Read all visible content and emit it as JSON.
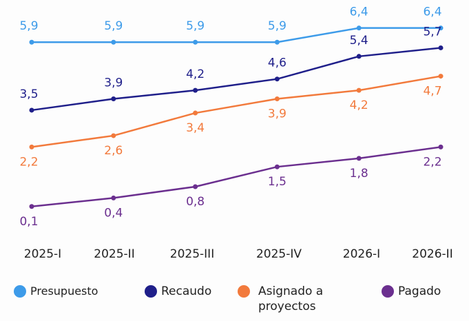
{
  "chart_data": {
    "type": "line",
    "categories": [
      "2025-I",
      "2025-II",
      "2025-III",
      "2025-IV",
      "2026-I",
      "2026-II"
    ],
    "ylim": [
      -1,
      7
    ],
    "legend": "bottom",
    "series": [
      {
        "name": "Presupuesto",
        "color": "#3d9be9",
        "values": [
          5.9,
          5.9,
          5.9,
          5.9,
          6.4,
          6.4
        ],
        "value_labels": [
          "5,9",
          "5,9",
          "5,9",
          "5,9",
          "6,4",
          "6,4"
        ]
      },
      {
        "name": "Recaudo",
        "color": "#1f1f8a",
        "values": [
          3.5,
          3.9,
          4.2,
          4.6,
          5.4,
          5.7
        ],
        "value_labels": [
          "3,5",
          "3,9",
          "4,2",
          "4,6",
          "5,4",
          "5,7"
        ]
      },
      {
        "name": "Asignado a proyectos",
        "color": "#f27a3c",
        "values": [
          2.2,
          2.6,
          3.4,
          3.9,
          4.2,
          4.7
        ],
        "value_labels": [
          "2,2",
          "2,6",
          "3,4",
          "3,9",
          "4,2",
          "4,7"
        ]
      },
      {
        "name": "Pagado",
        "color": "#6b2f8f",
        "values": [
          0.1,
          0.4,
          0.8,
          1.5,
          1.8,
          2.2
        ],
        "value_labels": [
          "0,1",
          "0,4",
          "0,8",
          "1,5",
          "1,8",
          "2,2"
        ]
      }
    ]
  }
}
